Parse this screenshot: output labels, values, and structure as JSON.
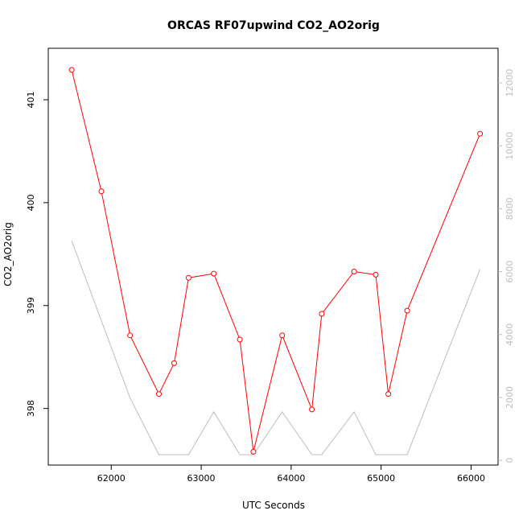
{
  "chart_data": {
    "type": "line",
    "title": "ORCAS RF07upwind CO2_AO2orig",
    "xlabel": "UTC Seconds",
    "ylabel": "CO2_AO2orig",
    "xlim": [
      61300,
      66300
    ],
    "ylim": [
      397.45,
      401.5
    ],
    "y2lim": [
      -150,
      13100
    ],
    "x_ticks": [
      62000,
      63000,
      64000,
      65000,
      66000
    ],
    "y_ticks": [
      398,
      399,
      400,
      401
    ],
    "y2_ticks": [
      0,
      2000,
      4000,
      6000,
      8000,
      10000,
      12000
    ],
    "grid": false,
    "series": [
      {
        "color": "#ff0000",
        "axis": "left",
        "markers": "open-circle",
        "x": [
          61560,
          61890,
          62210,
          62530,
          62700,
          62860,
          63140,
          63430,
          63580,
          63900,
          64230,
          64340,
          64700,
          64940,
          65080,
          65290,
          66100
        ],
        "y": [
          401.29,
          400.11,
          398.71,
          398.14,
          398.44,
          399.27,
          399.31,
          398.67,
          397.58,
          398.71,
          397.99,
          398.92,
          399.33,
          399.3,
          398.14,
          398.95,
          400.67
        ]
      },
      {
        "color": "#bebebe",
        "axis": "right",
        "markers": "none",
        "x": [
          61560,
          62210,
          62530,
          62860,
          63140,
          63430,
          63580,
          63900,
          64230,
          64340,
          64700,
          64940,
          65290,
          66100
        ],
        "y": [
          6980,
          1980,
          180,
          180,
          1540,
          180,
          180,
          1540,
          180,
          180,
          1540,
          180,
          180,
          6080
        ]
      }
    ]
  }
}
